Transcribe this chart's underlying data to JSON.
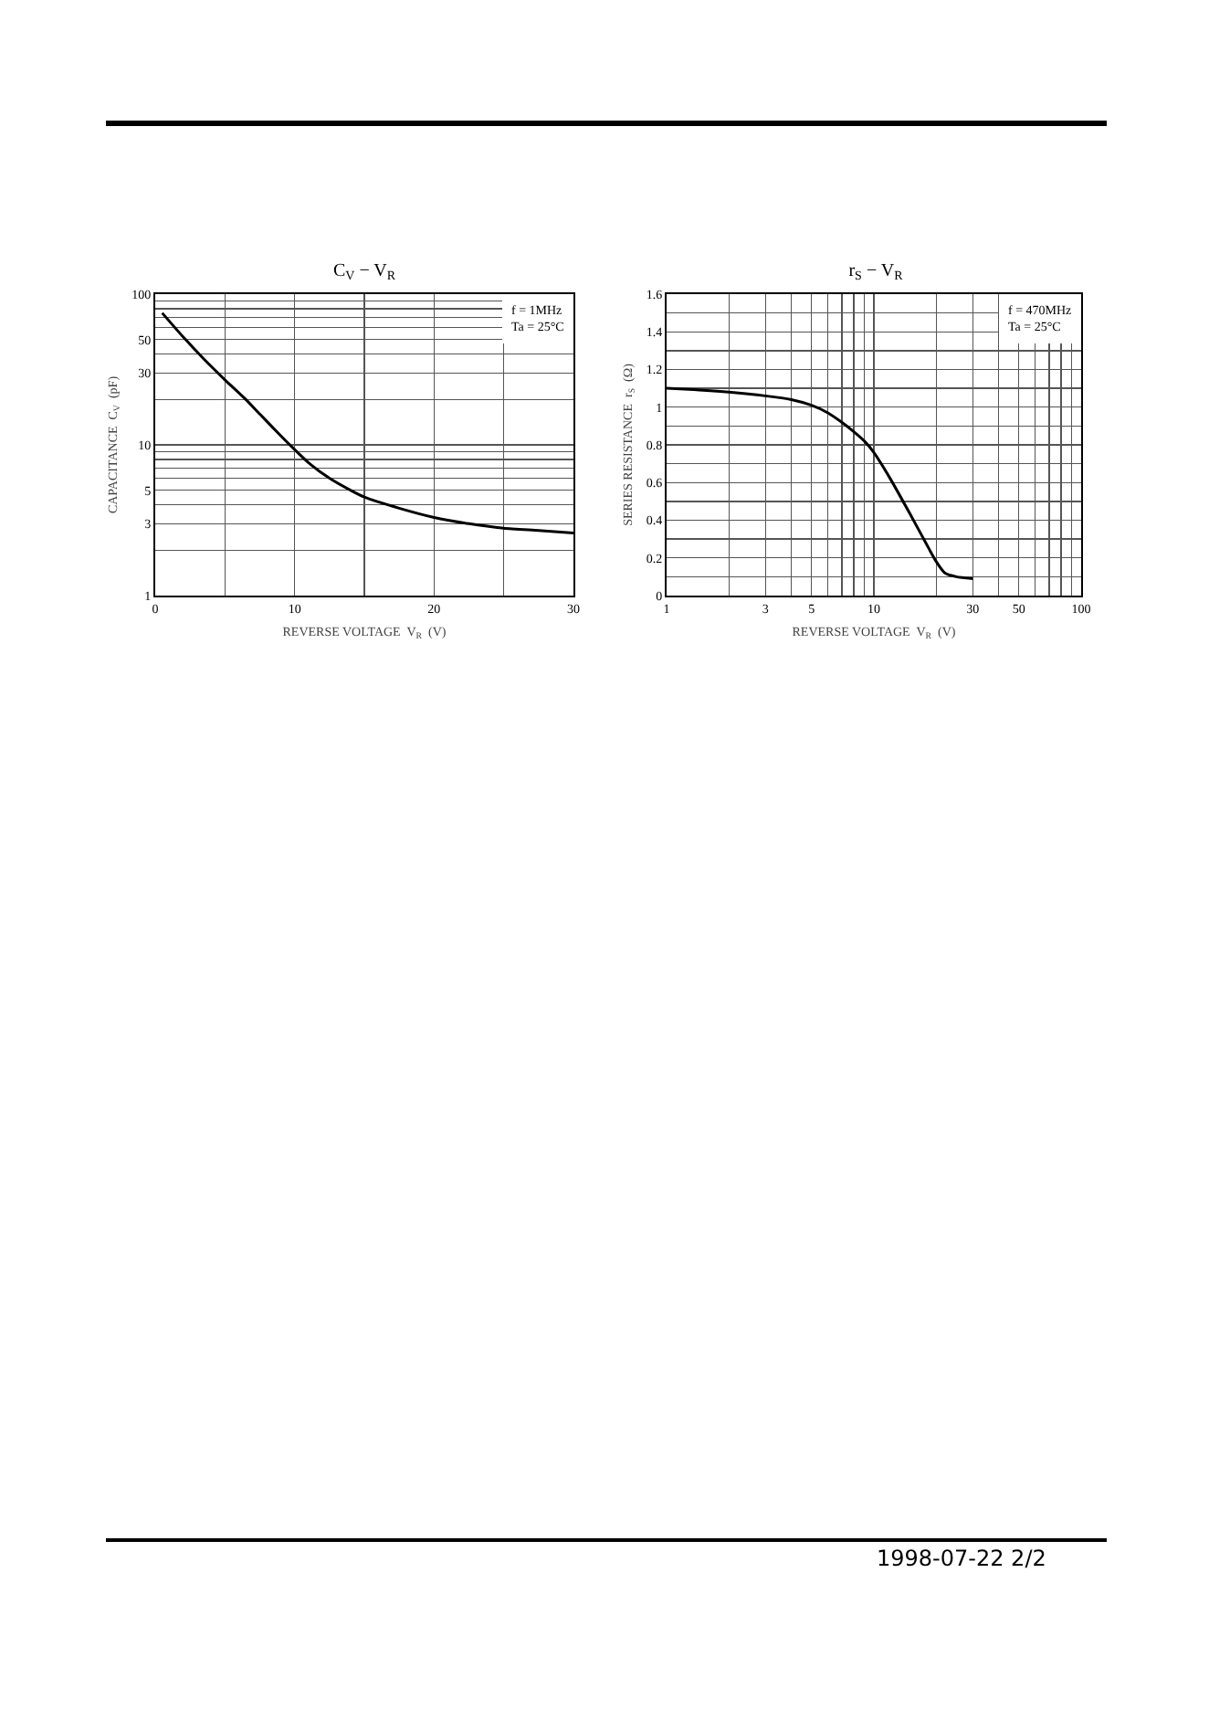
{
  "chart_data": [
    {
      "type": "line",
      "title": "C$_{V}$ − V$_{R}$",
      "xlabel": "REVERSE VOLTAGE  V$_{R}$  (V)",
      "ylabel": "CAPACITANCE  C$_{V}$  (pF)",
      "log": "y",
      "grid": true,
      "marker": "none",
      "line_style": "solid",
      "x": [
        0.5,
        2,
        3.5,
        5,
        6.5,
        7.5,
        9,
        10,
        11,
        12.5,
        14,
        15,
        17.5,
        20,
        22.5,
        25,
        27.5,
        30
      ],
      "series": [
        {
          "color": "#000000",
          "values": [
            75,
            52,
            37,
            27,
            20,
            16,
            11.5,
            9.3,
            7.6,
            6.0,
            5.0,
            4.5,
            3.8,
            3.3,
            3.0,
            2.8,
            2.7,
            2.6
          ]
        }
      ],
      "xlim": [
        0,
        30
      ],
      "xticks": [
        0,
        {
          "value": 5,
          "label": null
        },
        10,
        {
          "value": 15,
          "label": null
        },
        20,
        {
          "value": 25,
          "label": null
        },
        30
      ],
      "ylim": [
        1,
        100
      ],
      "yticks": [
        1,
        {
          "value": 2,
          "label": null
        },
        3,
        {
          "value": 4,
          "label": null
        },
        5,
        {
          "value": 6,
          "label": null
        },
        {
          "value": 7,
          "label": null
        },
        {
          "value": 8,
          "label": null
        },
        {
          "value": 9,
          "label": null
        },
        10,
        {
          "value": 20,
          "label": null
        },
        30,
        {
          "value": 40,
          "label": null
        },
        50,
        {
          "value": 60,
          "label": null
        },
        {
          "value": 70,
          "label": null
        },
        {
          "value": 80,
          "label": null
        },
        {
          "value": 90,
          "label": null
        },
        100
      ],
      "annotations": [
        "f = 1MHz",
        "Ta = 25°C"
      ]
    },
    {
      "type": "line",
      "title": "r$_{S}$ − V$_{R}$",
      "xlabel": "REVERSE VOLTAGE  V$_{R}$  (V)",
      "ylabel": "SERIES RESISTANCE  r$_{S}$  (Ω)",
      "log": "x",
      "grid": true,
      "marker": "none",
      "line_style": "solid",
      "x": [
        1,
        1.5,
        2,
        3,
        4,
        5,
        6,
        7,
        8,
        9,
        10,
        12,
        15,
        18,
        20,
        22,
        25,
        30
      ],
      "series": [
        {
          "color": "#000000",
          "values": [
            1.1,
            1.09,
            1.08,
            1.06,
            1.04,
            1.01,
            0.97,
            0.92,
            0.87,
            0.82,
            0.76,
            0.62,
            0.43,
            0.27,
            0.18,
            0.12,
            0.1,
            0.09
          ]
        }
      ],
      "xlim": [
        1,
        100
      ],
      "xticks": [
        1,
        {
          "value": 2,
          "label": null
        },
        3,
        {
          "value": 4,
          "label": null
        },
        5,
        {
          "value": 6,
          "label": null
        },
        {
          "value": 7,
          "label": null
        },
        {
          "value": 8,
          "label": null
        },
        {
          "value": 9,
          "label": null
        },
        10,
        {
          "value": 20,
          "label": null
        },
        30,
        {
          "value": 40,
          "label": null
        },
        50,
        {
          "value": 60,
          "label": null
        },
        {
          "value": 70,
          "label": null
        },
        {
          "value": 80,
          "label": null
        },
        {
          "value": 90,
          "label": null
        },
        100
      ],
      "ylim": [
        0,
        1.6
      ],
      "yticks": [
        0,
        {
          "value": 0.1,
          "label": null
        },
        0.2,
        {
          "value": 0.3,
          "label": null
        },
        0.4,
        {
          "value": 0.5,
          "label": null
        },
        0.6,
        {
          "value": 0.7,
          "label": null
        },
        0.8,
        {
          "value": 0.9,
          "label": null
        },
        1.0,
        {
          "value": 1.1,
          "label": null
        },
        1.2,
        {
          "value": 1.3,
          "label": null
        },
        1.4,
        {
          "value": 1.5,
          "label": null
        },
        1.6
      ],
      "annotations": [
        "f = 470MHz",
        "Ta = 25°C",
        "1998-07-22   2/2"
      ]
    }
  ]
}
